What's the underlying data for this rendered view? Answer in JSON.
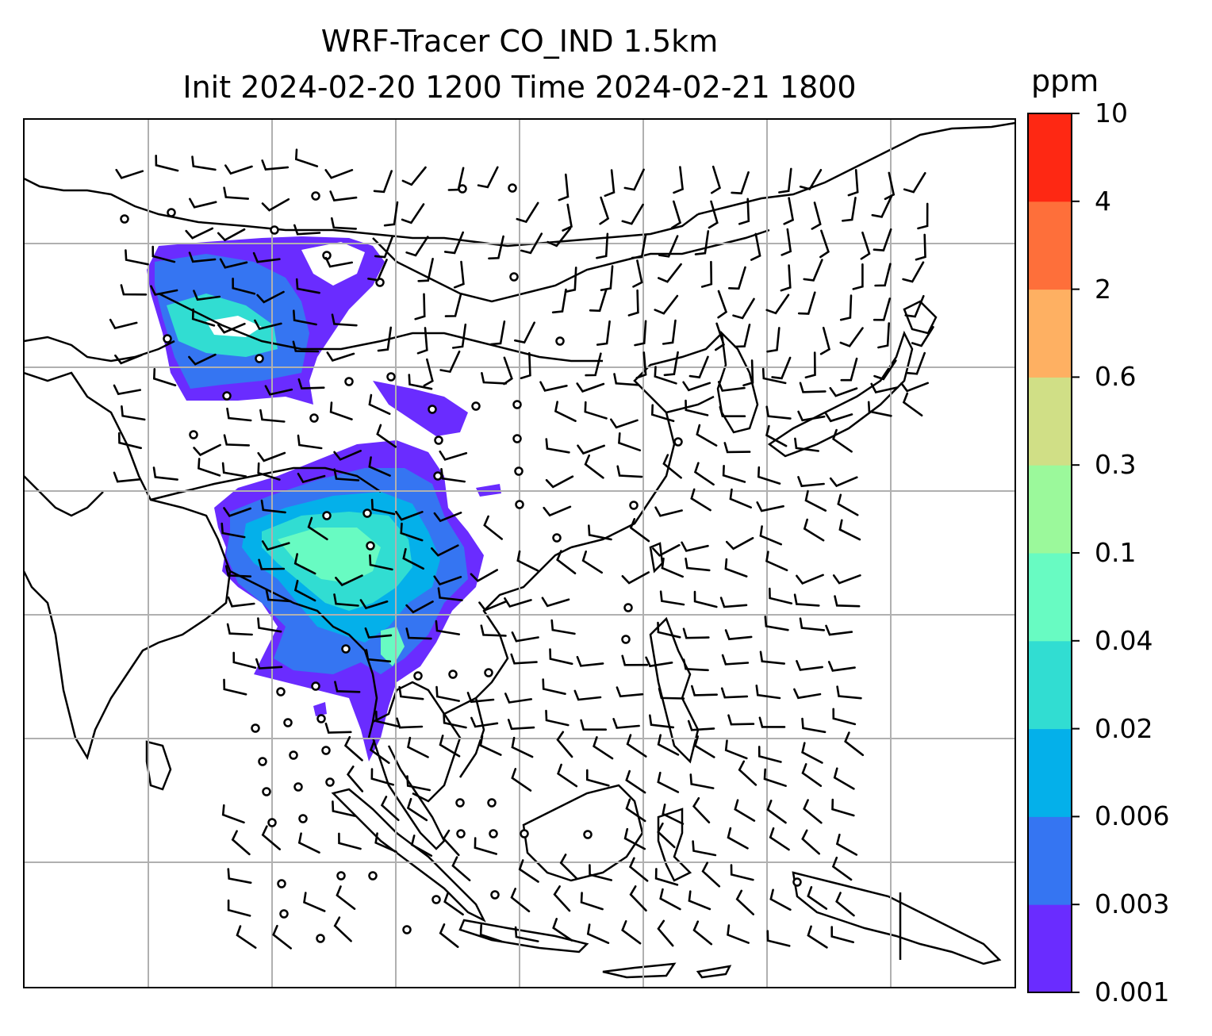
{
  "title": {
    "line1": "WRF-Tracer CO_IND 1.5km",
    "line2": "Init 2024-02-20 1200 Time 2024-02-21 1800"
  },
  "colorbar": {
    "unit": "ppm",
    "ticks": [
      "0.001",
      "0.003",
      "0.006",
      "0.02",
      "0.04",
      "0.1",
      "0.3",
      "0.6",
      "2",
      "4",
      "10"
    ],
    "colors": [
      "#6a2cff",
      "#3575f2",
      "#04b0ea",
      "#31ddd2",
      "#68fbc2",
      "#9bf99b",
      "#d0df86",
      "#feb062",
      "#fe6f3a",
      "#fe2813"
    ]
  },
  "map": {
    "gridlines": "on",
    "plume_colors": {
      "outer": "#6a2cff",
      "mid": "#3575f2",
      "inner": "#31ddd2",
      "core": "#68fbc2"
    },
    "coastline_color": "#000000",
    "grid_color": "#b0b0b0",
    "wind_symbol": "wind barbs (black), calm circles"
  }
}
